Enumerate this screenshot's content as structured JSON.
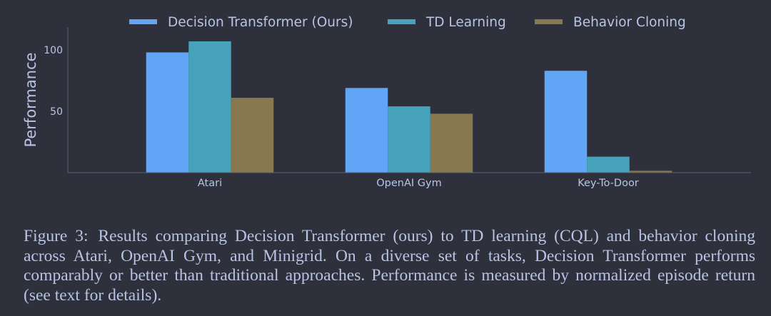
{
  "chart_data": {
    "type": "bar",
    "title": "",
    "xlabel": "",
    "ylabel": "Performance",
    "categories": [
      "Atari",
      "OpenAI Gym",
      "Key-To-Door"
    ],
    "series": [
      {
        "name": "Decision Transformer (Ours)",
        "color": "#61a5f7",
        "values": [
          98,
          69,
          83
        ]
      },
      {
        "name": "TD Learning",
        "color": "#47a3bc",
        "values": [
          107,
          54,
          13
        ]
      },
      {
        "name": "Behavior Cloning",
        "color": "#877850",
        "values": [
          61,
          48,
          1.5
        ]
      }
    ],
    "yticks": [
      50,
      100
    ],
    "ylim": [
      0,
      120
    ],
    "grid": false,
    "legend_position": "top-center"
  },
  "caption": {
    "label": "Figure 3:",
    "text": "Results comparing Decision Transformer (ours) to TD learning (CQL) and behavior cloning across Atari, OpenAI Gym, and Minigrid. On a diverse set of tasks, Decision Transformer performs comparably or better than traditional approaches. Performance is measured by normalized episode return (see text for details)."
  },
  "colors": {
    "background": "#2e313c",
    "text": "#b9c3e6",
    "axis": "#5d6273"
  }
}
